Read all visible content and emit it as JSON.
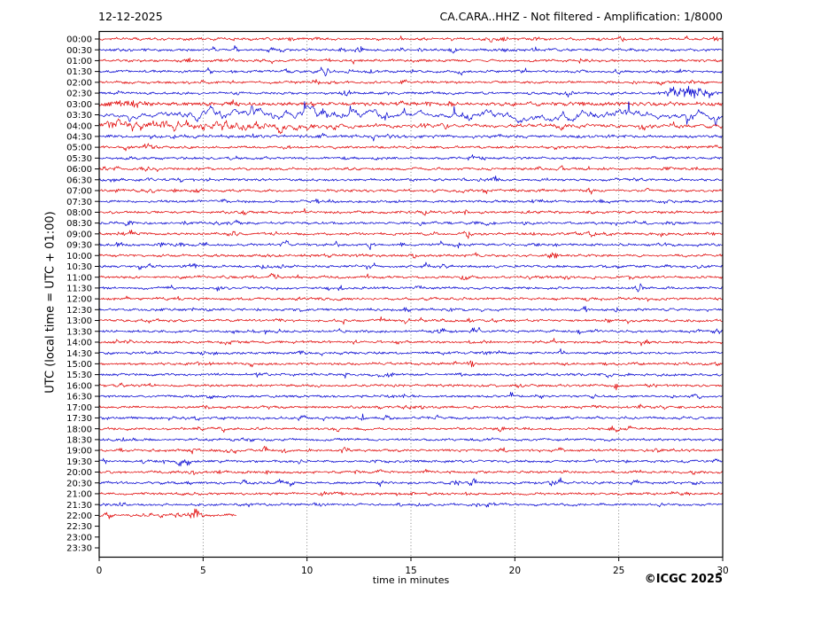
{
  "header": {
    "date": "12-12-2025",
    "station_title": "CA.CARA..HHZ - Not filtered - Amplification: 1/8000"
  },
  "footer": {
    "copyright": "©ICGC 2025"
  },
  "chart_data": {
    "type": "line",
    "variant": "helicorder-dayplot",
    "date": "12-12-2025",
    "title": "CA.CARA..HHZ - Not filtered - Amplification: 1/8000",
    "xlabel": "time in minutes",
    "ylabel": "UTC (local time = UTC + 01:00)",
    "xlim": [
      0,
      30
    ],
    "x_ticks": [
      0,
      5,
      10,
      15,
      20,
      25,
      30
    ],
    "minutes_per_row": 30,
    "grid": {
      "vertical_dotted_minutes": [
        5,
        10,
        15,
        20,
        25
      ]
    },
    "colors": {
      "r": "#e00000",
      "b": "#0000d0",
      "axis": "#000000",
      "grid": "#666666"
    },
    "legend": "rows alternate red/blue, one row per 30 minutes UTC; amplitudes in relative px units (base 1 = quiet background)",
    "rows": [
      {
        "t": "00:00",
        "c": "r"
      },
      {
        "t": "00:30",
        "c": "b"
      },
      {
        "t": "01:00",
        "c": "r"
      },
      {
        "t": "01:30",
        "c": "b"
      },
      {
        "t": "02:00",
        "c": "r"
      },
      {
        "t": "02:30",
        "c": "b",
        "events": [
          [
            27.2,
            29.9,
            4.6
          ]
        ]
      },
      {
        "t": "03:00",
        "c": "r",
        "base": 1.5,
        "events": [
          [
            -1,
            3,
            1.3
          ]
        ]
      },
      {
        "t": "03:30",
        "c": "b",
        "base": 3.2,
        "slow": 1,
        "spikes": 22,
        "events": [
          [
            3,
            16,
            4.2
          ],
          [
            15.5,
            34,
            2.6
          ]
        ]
      },
      {
        "t": "04:00",
        "c": "r",
        "base": 1.7,
        "slow": 0.5,
        "events": [
          [
            -3,
            12.5,
            2.3
          ]
        ]
      },
      {
        "t": "04:30",
        "c": "b",
        "base": 1.25
      },
      {
        "t": "05:00",
        "c": "r"
      },
      {
        "t": "05:30",
        "c": "b"
      },
      {
        "t": "06:00",
        "c": "r"
      },
      {
        "t": "06:30",
        "c": "b"
      },
      {
        "t": "07:00",
        "c": "r"
      },
      {
        "t": "07:30",
        "c": "b"
      },
      {
        "t": "08:00",
        "c": "r"
      },
      {
        "t": "08:30",
        "c": "b"
      },
      {
        "t": "09:00",
        "c": "r"
      },
      {
        "t": "09:30",
        "c": "b"
      },
      {
        "t": "10:00",
        "c": "r"
      },
      {
        "t": "10:30",
        "c": "b"
      },
      {
        "t": "11:00",
        "c": "r"
      },
      {
        "t": "11:30",
        "c": "b"
      },
      {
        "t": "12:00",
        "c": "r"
      },
      {
        "t": "12:30",
        "c": "b"
      },
      {
        "t": "13:00",
        "c": "r"
      },
      {
        "t": "13:30",
        "c": "b"
      },
      {
        "t": "14:00",
        "c": "r"
      },
      {
        "t": "14:30",
        "c": "b"
      },
      {
        "t": "15:00",
        "c": "r"
      },
      {
        "t": "15:30",
        "c": "b"
      },
      {
        "t": "16:00",
        "c": "r"
      },
      {
        "t": "16:30",
        "c": "b"
      },
      {
        "t": "17:00",
        "c": "r"
      },
      {
        "t": "17:30",
        "c": "b"
      },
      {
        "t": "18:00",
        "c": "r"
      },
      {
        "t": "18:30",
        "c": "b"
      },
      {
        "t": "19:00",
        "c": "r"
      },
      {
        "t": "19:30",
        "c": "b"
      },
      {
        "t": "20:00",
        "c": "r"
      },
      {
        "t": "20:30",
        "c": "b"
      },
      {
        "t": "21:00",
        "c": "r"
      },
      {
        "t": "21:30",
        "c": "b"
      },
      {
        "t": "22:00",
        "c": "r",
        "end": 6.6
      },
      {
        "t": "22:30",
        "c": "b",
        "end": 0
      },
      {
        "t": "23:00",
        "c": "r",
        "end": 0
      },
      {
        "t": "23:30",
        "c": "b",
        "end": 0
      }
    ]
  }
}
